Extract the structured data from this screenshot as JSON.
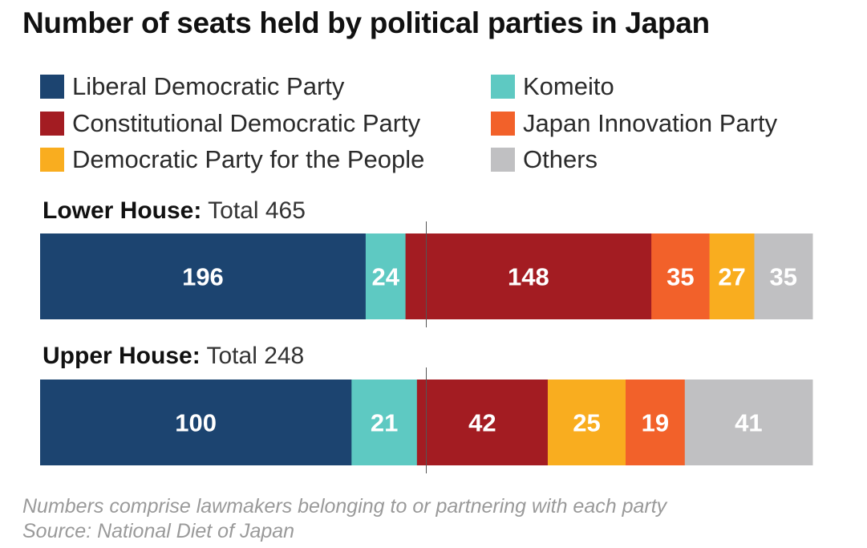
{
  "title": "Number of seats held by political parties in Japan",
  "legend": [
    {
      "label": "Liberal Democratic Party",
      "color": "#1c4470"
    },
    {
      "label": "Komeito",
      "color": "#5ec9c2"
    },
    {
      "label": "Constitutional Democratic Party",
      "color": "#a31c22"
    },
    {
      "label": "Japan Innovation Party",
      "color": "#f2612a"
    },
    {
      "label": "Democratic Party for the People",
      "color": "#f9ad1f"
    },
    {
      "label": "Others",
      "color": "#c0c0c2"
    }
  ],
  "chart_data": {
    "type": "bar",
    "orientation": "horizontal-stacked",
    "categories": [
      "Lower House",
      "Upper House"
    ],
    "category_labels": [
      {
        "name": "Lower House:",
        "total_text": "Total 465"
      },
      {
        "name": "Upper House:",
        "total_text": "Total 248"
      }
    ],
    "totals": [
      465,
      248
    ],
    "series_order": [
      [
        "Liberal Democratic Party",
        "Komeito",
        "Constitutional Democratic Party",
        "Japan Innovation Party",
        "Democratic Party for the People",
        "Others"
      ],
      [
        "Liberal Democratic Party",
        "Komeito",
        "Constitutional Democratic Party",
        "Democratic Party for the People",
        "Japan Innovation Party",
        "Others"
      ]
    ],
    "series": [
      {
        "name": "Liberal Democratic Party",
        "values": [
          196,
          100
        ]
      },
      {
        "name": "Komeito",
        "values": [
          24,
          21
        ]
      },
      {
        "name": "Constitutional Democratic Party",
        "values": [
          148,
          42
        ]
      },
      {
        "name": "Japan Innovation Party",
        "values": [
          35,
          19
        ]
      },
      {
        "name": "Democratic Party for the People",
        "values": [
          27,
          25
        ]
      },
      {
        "name": "Others",
        "values": [
          35,
          41
        ]
      }
    ],
    "reference_line": "majority (half of total)",
    "grid": false
  },
  "notes": {
    "line1": "Numbers comprise lawmakers belonging to or partnering with each party",
    "line2": "Source: National Diet of Japan"
  }
}
